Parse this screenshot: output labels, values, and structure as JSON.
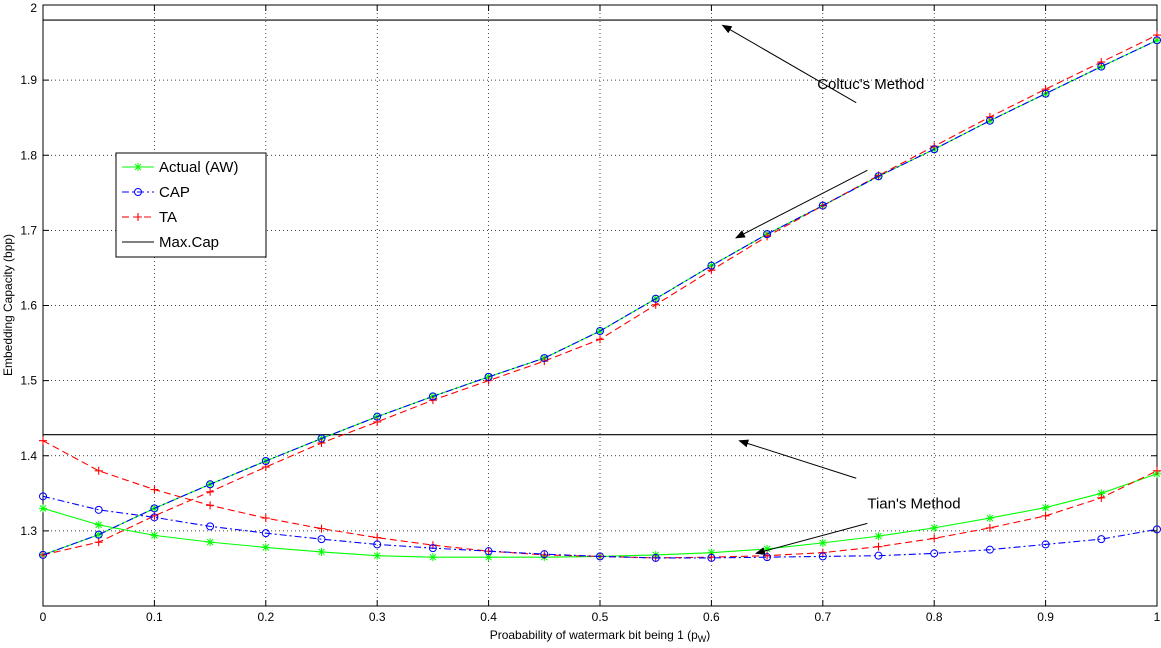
{
  "chart_data": {
    "type": "line",
    "title": "",
    "xlabel": "Proabability of watermark bit being 1 (p",
    "xlabel_sub": "W",
    "xlabel_close": ")",
    "ylabel": "Embedding Capacity (bpp)",
    "xlim": [
      0,
      1
    ],
    "ylim": [
      1.2,
      2.0
    ],
    "grid": true,
    "legend_position": "left-middle",
    "xticks": [
      0,
      0.1,
      0.2,
      0.3,
      0.4,
      0.5,
      0.6,
      0.7,
      0.8,
      0.9,
      1
    ],
    "xtick_labels": [
      "0",
      "0.1",
      "0.2",
      "0.3",
      "0.4",
      "0.5",
      "0.6",
      "0.7",
      "0.8",
      "0.9",
      "1"
    ],
    "yticks": [
      1.3,
      1.4,
      1.5,
      1.6,
      1.7,
      1.8,
      1.9,
      2.0
    ],
    "ytick_labels": [
      "1.3",
      "1.4",
      "1.5",
      "1.6",
      "1.7",
      "1.8",
      "1.9",
      "2"
    ],
    "x": [
      0,
      0.05,
      0.1,
      0.15,
      0.2,
      0.25,
      0.3,
      0.35,
      0.4,
      0.45,
      0.5,
      0.55,
      0.6,
      0.65,
      0.7,
      0.75,
      0.8,
      0.85,
      0.9,
      0.95,
      1.0
    ],
    "legend": [
      {
        "label": "Actual (AW)",
        "color": "#00ff00",
        "style": "solid",
        "marker": "star"
      },
      {
        "label": "CAP",
        "color": "#0000ff",
        "style": "dashdot",
        "marker": "circle"
      },
      {
        "label": "TA",
        "color": "#ff0000",
        "style": "dashed",
        "marker": "plus"
      },
      {
        "label": "Max.Cap",
        "color": "#000000",
        "style": "solid",
        "marker": "none"
      }
    ],
    "series": [
      {
        "group": "coltuc",
        "legend_index": 0,
        "color": "#00ff00",
        "style": "solid",
        "marker": "star",
        "values": [
          1.268,
          1.295,
          1.33,
          1.362,
          1.393,
          1.423,
          1.452,
          1.479,
          1.505,
          1.53,
          1.566,
          1.609,
          1.653,
          1.695,
          1.733,
          1.772,
          1.808,
          1.846,
          1.882,
          1.918,
          1.953
        ]
      },
      {
        "group": "coltuc",
        "legend_index": 1,
        "color": "#0000ff",
        "style": "dashdot",
        "marker": "circle",
        "values": [
          1.268,
          1.295,
          1.33,
          1.362,
          1.393,
          1.423,
          1.452,
          1.479,
          1.505,
          1.53,
          1.566,
          1.609,
          1.653,
          1.695,
          1.733,
          1.772,
          1.808,
          1.846,
          1.882,
          1.918,
          1.953
        ]
      },
      {
        "group": "coltuc",
        "legend_index": 2,
        "color": "#ff0000",
        "style": "dashed",
        "marker": "plus",
        "values": [
          1.268,
          1.285,
          1.32,
          1.352,
          1.385,
          1.417,
          1.445,
          1.474,
          1.5,
          1.526,
          1.555,
          1.601,
          1.647,
          1.692,
          1.733,
          1.773,
          1.812,
          1.851,
          1.888,
          1.924,
          1.96
        ]
      },
      {
        "group": "coltuc",
        "legend_index": 3,
        "color": "#000000",
        "style": "solid",
        "marker": "none",
        "constant": 1.98
      },
      {
        "group": "tian",
        "legend_index": 0,
        "color": "#00ff00",
        "style": "solid",
        "marker": "star",
        "values": [
          1.33,
          1.308,
          1.294,
          1.285,
          1.278,
          1.272,
          1.267,
          1.265,
          1.265,
          1.265,
          1.266,
          1.268,
          1.271,
          1.276,
          1.284,
          1.293,
          1.304,
          1.317,
          1.331,
          1.35,
          1.376
        ]
      },
      {
        "group": "tian",
        "legend_index": 1,
        "color": "#0000ff",
        "style": "dashdot",
        "marker": "circle",
        "values": [
          1.346,
          1.328,
          1.318,
          1.306,
          1.297,
          1.289,
          1.282,
          1.277,
          1.273,
          1.269,
          1.266,
          1.264,
          1.264,
          1.265,
          1.266,
          1.267,
          1.27,
          1.275,
          1.282,
          1.289,
          1.302
        ]
      },
      {
        "group": "tian",
        "legend_index": 2,
        "color": "#ff0000",
        "style": "dashed",
        "marker": "plus",
        "values": [
          1.42,
          1.38,
          1.355,
          1.334,
          1.317,
          1.303,
          1.291,
          1.281,
          1.273,
          1.268,
          1.266,
          1.264,
          1.265,
          1.267,
          1.271,
          1.279,
          1.29,
          1.304,
          1.32,
          1.344,
          1.38
        ]
      },
      {
        "group": "tian",
        "legend_index": 3,
        "color": "#000000",
        "style": "solid",
        "marker": "none",
        "constant": 1.428
      }
    ],
    "annotations": [
      {
        "text": "Coltuc's Method",
        "label_x": 0.695,
        "label_y": 1.888,
        "arrows": [
          [
            0.73,
            1.87,
            0.61,
            1.973
          ],
          [
            0.74,
            1.78,
            0.622,
            1.69
          ]
        ]
      },
      {
        "text": "Tian's Method",
        "label_x": 0.74,
        "label_y": 1.33,
        "arrows": [
          [
            0.73,
            1.37,
            0.625,
            1.42
          ],
          [
            0.74,
            1.31,
            0.64,
            1.27
          ]
        ]
      }
    ]
  }
}
